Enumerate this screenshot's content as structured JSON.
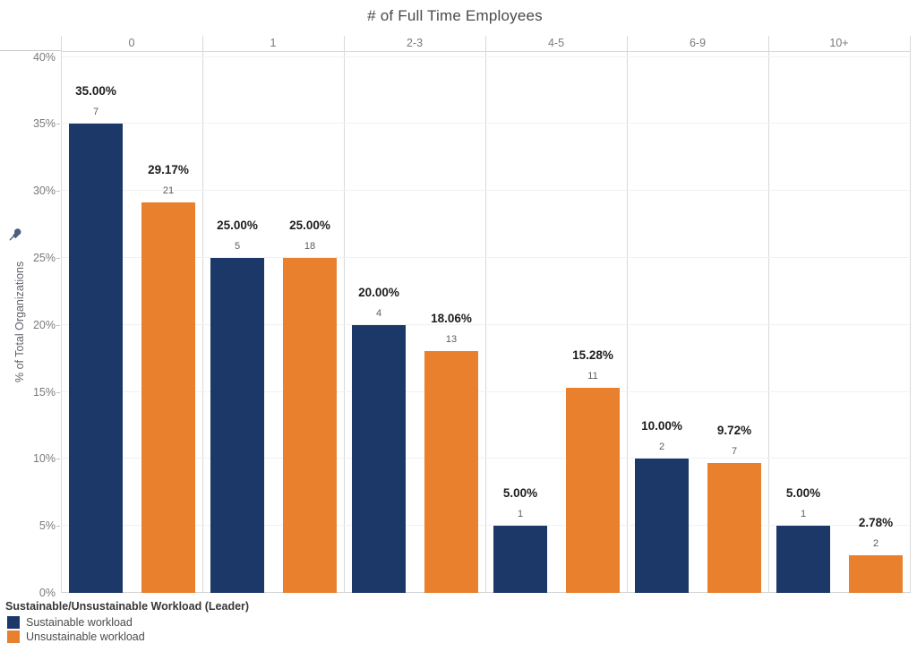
{
  "title": "# of Full Time Employees",
  "x_axis": {
    "categories": [
      "0",
      "1",
      "2-3",
      "4-5",
      "6-9",
      "10+"
    ]
  },
  "y_axis": {
    "label": "% of Total Organizations",
    "min": 0,
    "max": 40,
    "tick_step": 5,
    "tick_labels": [
      "0%",
      "5%",
      "10%",
      "15%",
      "20%",
      "25%",
      "30%",
      "35%",
      "40%"
    ],
    "pinned": true
  },
  "legend": {
    "title": "Sustainable/Unsustainable Workload (Leader)",
    "items": [
      {
        "label": "Sustainable workload",
        "color": "#1B3869"
      },
      {
        "label": "Unsustainable workload",
        "color": "#E8802E"
      }
    ]
  },
  "colors": {
    "sustainable": "#1B3869",
    "unsustainable": "#E8802E",
    "gridline": "#f1f1f1",
    "divider": "#d9d9d9",
    "pin": "#4c5f7d"
  },
  "chart_data": {
    "type": "bar",
    "title": "# of Full Time Employees",
    "xlabel": "# of Full Time Employees",
    "ylabel": "% of Total Organizations",
    "ylim": [
      0,
      40
    ],
    "grid": true,
    "legend_position": "bottom-left",
    "categories": [
      "0",
      "1",
      "2-3",
      "4-5",
      "6-9",
      "10+"
    ],
    "series": [
      {
        "name": "Sustainable workload",
        "color": "#1B3869",
        "values": [
          35.0,
          25.0,
          20.0,
          5.0,
          10.0,
          5.0
        ],
        "value_labels": [
          "35.00%",
          "25.00%",
          "20.00%",
          "5.00%",
          "10.00%",
          "5.00%"
        ],
        "counts": [
          7,
          5,
          4,
          1,
          2,
          1
        ]
      },
      {
        "name": "Unsustainable workload",
        "color": "#E8802E",
        "values": [
          29.17,
          25.0,
          18.06,
          15.28,
          9.72,
          2.78
        ],
        "value_labels": [
          "29.17%",
          "25.00%",
          "18.06%",
          "15.28%",
          "9.72%",
          "2.78%"
        ],
        "counts": [
          21,
          18,
          13,
          11,
          7,
          2
        ]
      }
    ]
  }
}
